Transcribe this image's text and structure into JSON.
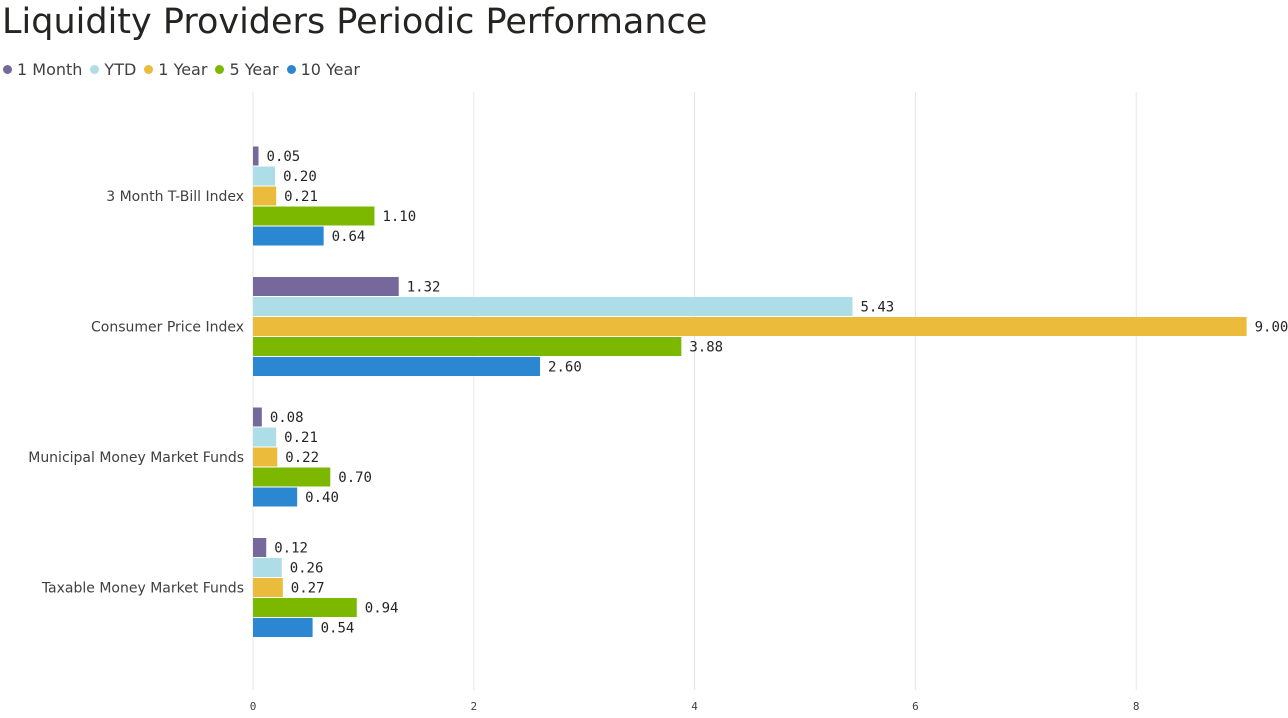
{
  "chart_data": {
    "type": "bar",
    "orientation": "horizontal",
    "title": "Liquidity Providers Periodic Performance",
    "categories": [
      "3 Month T-Bill Index",
      "Consumer Price Index",
      "Municipal Money Market Funds",
      "Taxable Money Market Funds"
    ],
    "series": [
      {
        "name": "1 Month",
        "color": "#76689A",
        "values": [
          0.05,
          1.32,
          0.08,
          0.12
        ],
        "labels": [
          "0.05",
          "1.32",
          "0.08",
          "0.12"
        ]
      },
      {
        "name": "YTD",
        "color": "#ADDDE6",
        "values": [
          0.2,
          5.43,
          0.21,
          0.26
        ],
        "labels": [
          "0.20",
          "5.43",
          "0.21",
          "0.26"
        ]
      },
      {
        "name": "1 Year",
        "color": "#EBBB3B",
        "values": [
          0.21,
          9.0,
          0.22,
          0.27
        ],
        "labels": [
          "0.21",
          "9.00",
          "0.22",
          "0.27"
        ]
      },
      {
        "name": "5 Year",
        "color": "#7DB800",
        "values": [
          1.1,
          3.88,
          0.7,
          0.94
        ],
        "labels": [
          "1.10",
          "3.88",
          "0.70",
          "0.94"
        ]
      },
      {
        "name": "10 Year",
        "color": "#2C87D3",
        "values": [
          0.64,
          2.6,
          0.4,
          0.54
        ],
        "labels": [
          "0.64",
          "2.60",
          "0.40",
          "0.54"
        ]
      }
    ],
    "xlim": [
      0,
      9
    ],
    "xticks": [
      0,
      2,
      4,
      6,
      8
    ],
    "xtick_labels": [
      "0",
      "2",
      "4",
      "6",
      "8"
    ],
    "grid": true,
    "legend": "top-left"
  }
}
